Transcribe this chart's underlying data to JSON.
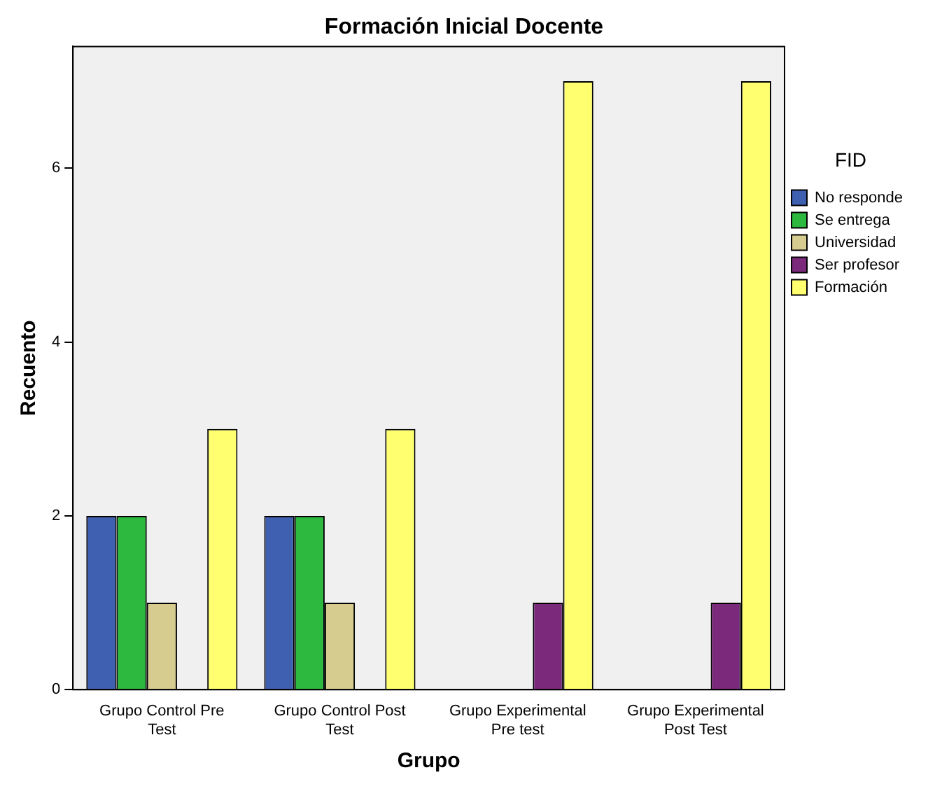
{
  "chart_data": {
    "type": "bar",
    "title": "Formación Inicial Docente",
    "xlabel": "Grupo",
    "ylabel": "Recuento",
    "legend_title": "FID",
    "categories": [
      "Grupo Control Pre Test",
      "Grupo Control Post Test",
      "Grupo Experimental Pre test",
      "Grupo Experimental Post Test"
    ],
    "series": [
      {
        "name": "No responde",
        "color": "#3f5fb0",
        "values": [
          2,
          2,
          0,
          0
        ]
      },
      {
        "name": "Se entrega",
        "color": "#2db83f",
        "values": [
          2,
          2,
          0,
          0
        ]
      },
      {
        "name": "Universidad",
        "color": "#d6cc8f",
        "values": [
          1,
          1,
          0,
          0
        ]
      },
      {
        "name": "Ser profesor",
        "color": "#7b2a7b",
        "values": [
          0,
          0,
          1,
          1
        ]
      },
      {
        "name": "Formación",
        "color": "#ffff70",
        "values": [
          3,
          3,
          7,
          7
        ]
      }
    ],
    "ylim": [
      0,
      7.4
    ],
    "yticks": [
      0,
      2,
      4,
      6
    ],
    "grid": false,
    "legend": "right"
  }
}
